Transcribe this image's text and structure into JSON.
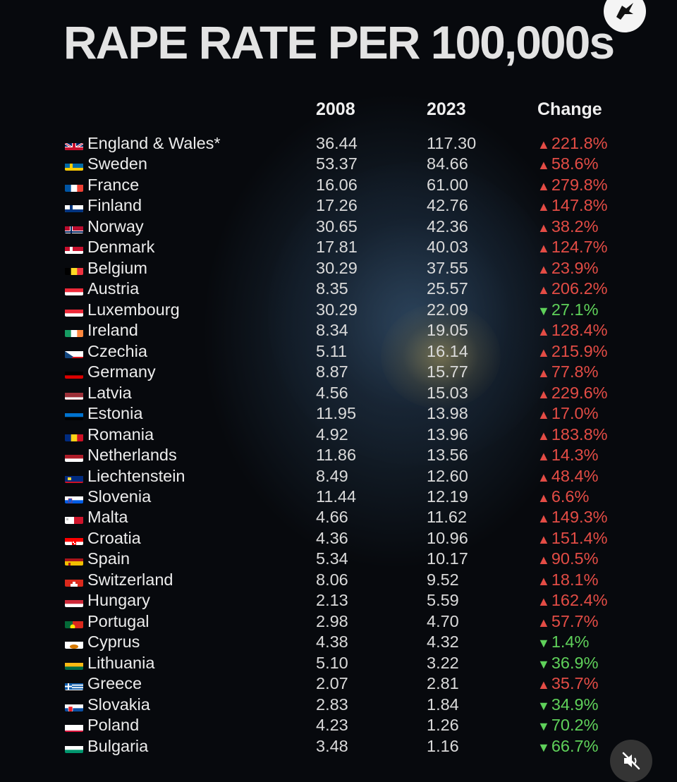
{
  "title": "RAPE RATE PER 100,000s",
  "columns": {
    "year1": "2008",
    "year2": "2023",
    "change": "Change"
  },
  "arrow_up": "▲",
  "arrow_down": "▼",
  "colors": {
    "up": "#e34c45",
    "down": "#5fd15a",
    "background": "#06080b"
  },
  "icons": {
    "logo": "eagle-logo-icon",
    "mute": "speaker-muted-icon"
  },
  "chart_data": {
    "type": "table",
    "title": "RAPE RATE PER 100,000s",
    "columns": [
      "",
      "2008",
      "2023",
      "Change"
    ],
    "rows": [
      {
        "flag": "gb",
        "country": "England & Wales*",
        "v2008": "36.44",
        "v2023": "117.30",
        "change": "221.8%",
        "dir": "up"
      },
      {
        "flag": "se",
        "country": "Sweden",
        "v2008": "53.37",
        "v2023": "84.66",
        "change": "58.6%",
        "dir": "up"
      },
      {
        "flag": "fr",
        "country": "France",
        "v2008": "16.06",
        "v2023": "61.00",
        "change": "279.8%",
        "dir": "up"
      },
      {
        "flag": "fi",
        "country": "Finland",
        "v2008": "17.26",
        "v2023": "42.76",
        "change": "147.8%",
        "dir": "up"
      },
      {
        "flag": "no",
        "country": "Norway",
        "v2008": "30.65",
        "v2023": "42.36",
        "change": "38.2%",
        "dir": "up"
      },
      {
        "flag": "dk",
        "country": "Denmark",
        "v2008": "17.81",
        "v2023": "40.03",
        "change": "124.7%",
        "dir": "up"
      },
      {
        "flag": "be",
        "country": "Belgium",
        "v2008": "30.29",
        "v2023": "37.55",
        "change": "23.9%",
        "dir": "up"
      },
      {
        "flag": "at",
        "country": "Austria",
        "v2008": "8.35",
        "v2023": "25.57",
        "change": "206.2%",
        "dir": "up"
      },
      {
        "flag": "lu",
        "country": "Luxembourg",
        "v2008": "30.29",
        "v2023": "22.09",
        "change": "27.1%",
        "dir": "down"
      },
      {
        "flag": "ie",
        "country": "Ireland",
        "v2008": "8.34",
        "v2023": "19.05",
        "change": "128.4%",
        "dir": "up"
      },
      {
        "flag": "cz",
        "country": "Czechia",
        "v2008": "5.11",
        "v2023": "16.14",
        "change": "215.9%",
        "dir": "up"
      },
      {
        "flag": "de",
        "country": "Germany",
        "v2008": "8.87",
        "v2023": "15.77",
        "change": "77.8%",
        "dir": "up"
      },
      {
        "flag": "lv",
        "country": "Latvia",
        "v2008": "4.56",
        "v2023": "15.03",
        "change": "229.6%",
        "dir": "up"
      },
      {
        "flag": "ee",
        "country": "Estonia",
        "v2008": "11.95",
        "v2023": "13.98",
        "change": "17.0%",
        "dir": "up"
      },
      {
        "flag": "ro",
        "country": "Romania",
        "v2008": "4.92",
        "v2023": "13.96",
        "change": "183.8%",
        "dir": "up"
      },
      {
        "flag": "nl",
        "country": "Netherlands",
        "v2008": "11.86",
        "v2023": "13.56",
        "change": "14.3%",
        "dir": "up"
      },
      {
        "flag": "li",
        "country": "Liechtenstein",
        "v2008": "8.49",
        "v2023": "12.60",
        "change": "48.4%",
        "dir": "up"
      },
      {
        "flag": "si",
        "country": "Slovenia",
        "v2008": "11.44",
        "v2023": "12.19",
        "change": "6.6%",
        "dir": "up"
      },
      {
        "flag": "mt",
        "country": "Malta",
        "v2008": "4.66",
        "v2023": "11.62",
        "change": "149.3%",
        "dir": "up"
      },
      {
        "flag": "hr",
        "country": "Croatia",
        "v2008": "4.36",
        "v2023": "10.96",
        "change": "151.4%",
        "dir": "up"
      },
      {
        "flag": "es",
        "country": "Spain",
        "v2008": "5.34",
        "v2023": "10.17",
        "change": "90.5%",
        "dir": "up"
      },
      {
        "flag": "ch",
        "country": "Switzerland",
        "v2008": "8.06",
        "v2023": "9.52",
        "change": "18.1%",
        "dir": "up"
      },
      {
        "flag": "hu",
        "country": "Hungary",
        "v2008": "2.13",
        "v2023": "5.59",
        "change": "162.4%",
        "dir": "up"
      },
      {
        "flag": "pt",
        "country": "Portugal",
        "v2008": "2.98",
        "v2023": "4.70",
        "change": "57.7%",
        "dir": "up"
      },
      {
        "flag": "cy",
        "country": "Cyprus",
        "v2008": "4.38",
        "v2023": "4.32",
        "change": "1.4%",
        "dir": "down"
      },
      {
        "flag": "lt",
        "country": "Lithuania",
        "v2008": "5.10",
        "v2023": "3.22",
        "change": "36.9%",
        "dir": "down"
      },
      {
        "flag": "gr",
        "country": "Greece",
        "v2008": "2.07",
        "v2023": "2.81",
        "change": "35.7%",
        "dir": "up"
      },
      {
        "flag": "sk",
        "country": "Slovakia",
        "v2008": "2.83",
        "v2023": "1.84",
        "change": "34.9%",
        "dir": "down"
      },
      {
        "flag": "pl",
        "country": "Poland",
        "v2008": "4.23",
        "v2023": "1.26",
        "change": "70.2%",
        "dir": "down"
      },
      {
        "flag": "bg",
        "country": "Bulgaria",
        "v2008": "3.48",
        "v2023": "1.16",
        "change": "66.7%",
        "dir": "down"
      }
    ]
  }
}
